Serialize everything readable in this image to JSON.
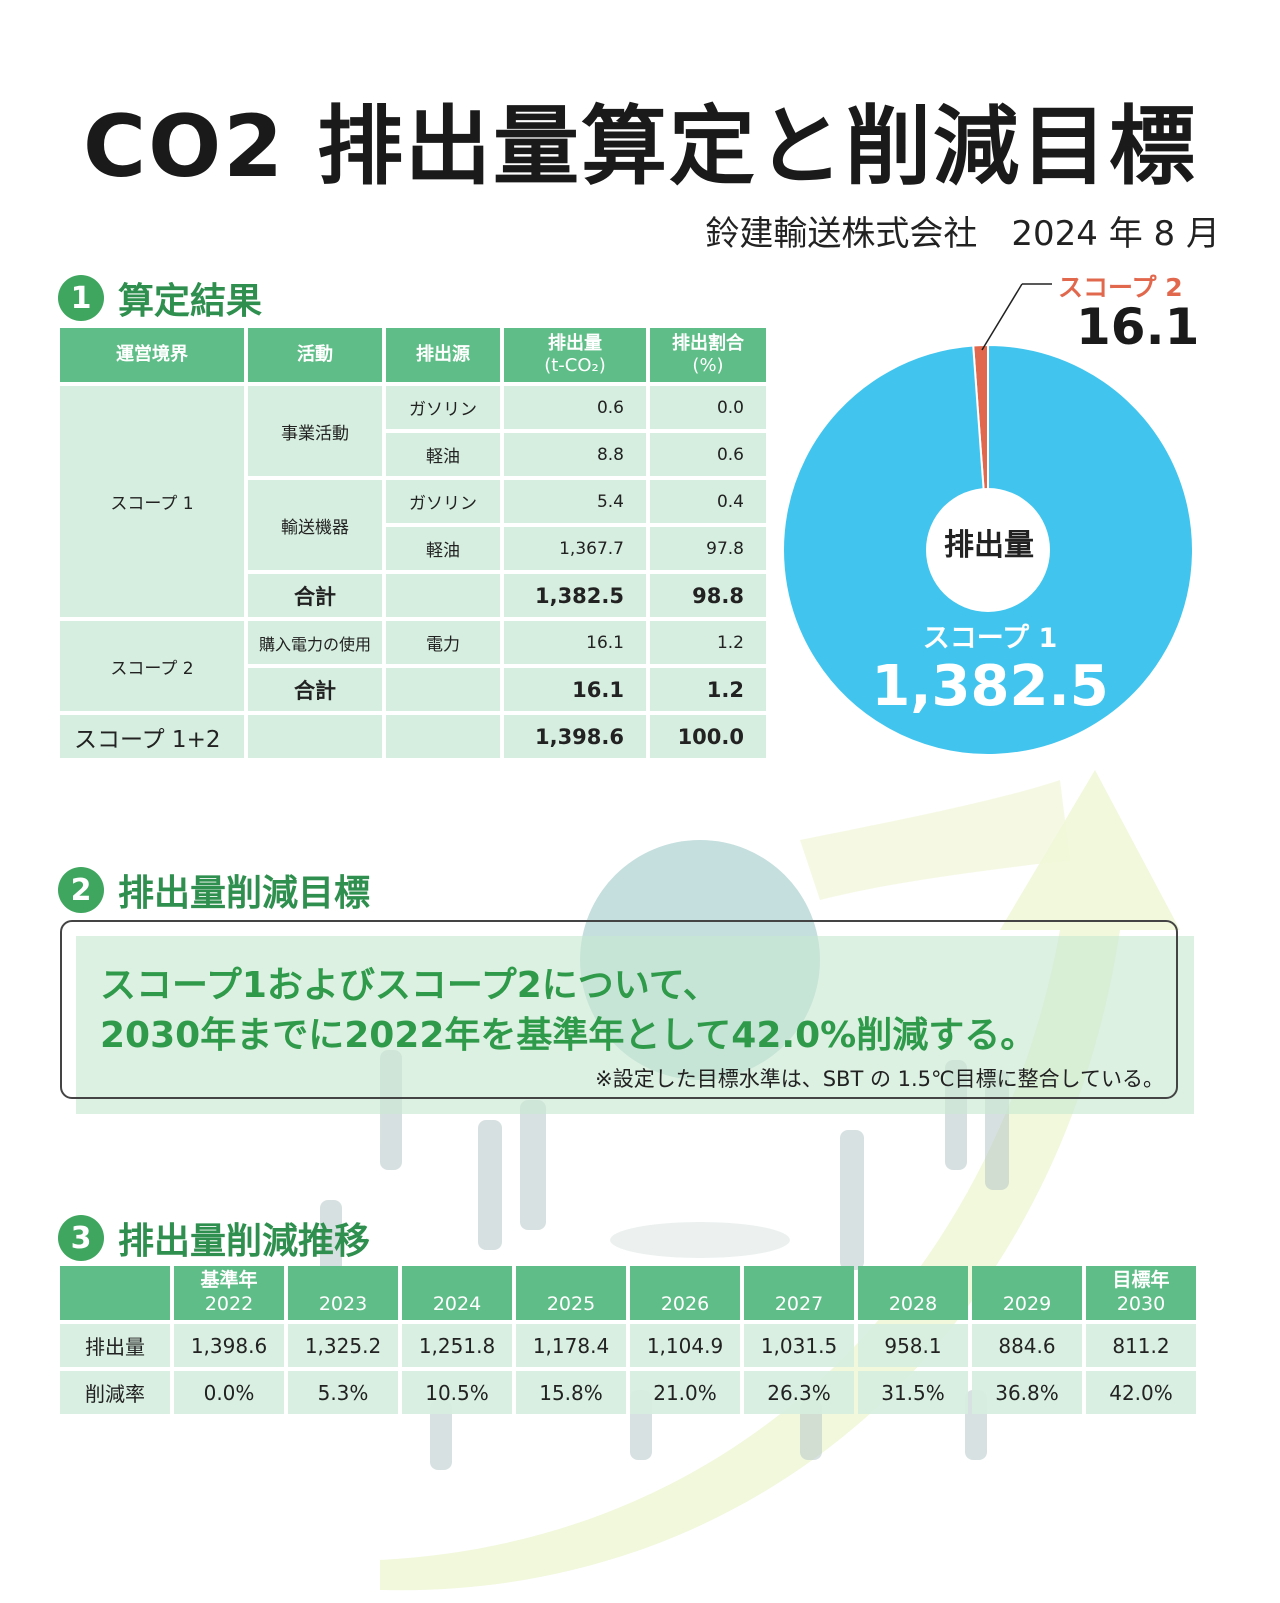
{
  "title": "CO2 排出量算定と削減目標",
  "company": "鈴建輸送株式会社　2024 年 8 月",
  "sections": {
    "s1": {
      "num": "1",
      "title": "算定結果"
    },
    "s2": {
      "num": "2",
      "title": "排出量削減目標"
    },
    "s3": {
      "num": "3",
      "title": "排出量削減推移"
    }
  },
  "result_table": {
    "headers": {
      "boundary": "運営境界",
      "activity": "活動",
      "source": "排出源",
      "emission": "排出量",
      "emission_unit": "(t-CO₂)",
      "ratio": "排出割合",
      "ratio_unit": "(%)"
    },
    "scope1": {
      "label": "スコープ 1",
      "business": "事業活動",
      "transport": "輸送機器",
      "rows": [
        {
          "source": "ガソリン",
          "emission": "0.6",
          "ratio": "0.0"
        },
        {
          "source": "軽油",
          "emission": "8.8",
          "ratio": "0.6"
        },
        {
          "source": "ガソリン",
          "emission": "5.4",
          "ratio": "0.4"
        },
        {
          "source": "軽油",
          "emission": "1,367.7",
          "ratio": "97.8"
        }
      ],
      "total_label": "合計",
      "total_emission": "1,382.5",
      "total_ratio": "98.8"
    },
    "scope2": {
      "label": "スコープ 2",
      "activity": "購入電力の使用",
      "source": "電力",
      "emission": "16.1",
      "ratio": "1.2",
      "total_label": "合計",
      "total_emission": "16.1",
      "total_ratio": "1.2"
    },
    "grand": {
      "label": "スコープ 1+2",
      "emission": "1,398.6",
      "ratio": "100.0"
    }
  },
  "pie": {
    "center": "排出量",
    "scope1_label": "スコープ 1",
    "scope1_value": "1,382.5",
    "scope2_label": "スコープ 2",
    "scope2_value": "16.1",
    "colors": {
      "scope1": "#41c5ee",
      "scope2": "#e2684d"
    }
  },
  "target": {
    "line1": "スコープ1およびスコープ2について、",
    "line2": "2030年までに2022年を基準年として42.0%削減する。",
    "note": "※設定した目標水準は、SBT の 1.5℃目標に整合している。"
  },
  "trend_table": {
    "header_prefix": {
      "base": "基準年",
      "goal": "目標年"
    },
    "years": [
      "2022",
      "2023",
      "2024",
      "2025",
      "2026",
      "2027",
      "2028",
      "2029",
      "2030"
    ],
    "row_labels": {
      "emission": "排出量",
      "rate": "削減率"
    },
    "emission": [
      "1,398.6",
      "1,325.2",
      "1,251.8",
      "1,178.4",
      "1,104.9",
      "1,031.5",
      "958.1",
      "884.6",
      "811.2"
    ],
    "rate": [
      "0.0%",
      "5.3%",
      "10.5%",
      "15.8%",
      "21.0%",
      "26.3%",
      "31.5%",
      "36.8%",
      "42.0%"
    ]
  },
  "chart_data": [
    {
      "type": "pie",
      "title": "",
      "center_label": "排出量",
      "labels": [
        "スコープ 1",
        "スコープ 2"
      ],
      "values": [
        1382.5,
        16.1
      ]
    },
    {
      "type": "table",
      "title": "排出量削減推移",
      "columns": [
        "2022",
        "2023",
        "2024",
        "2025",
        "2026",
        "2027",
        "2028",
        "2029",
        "2030"
      ],
      "rows": [
        {
          "name": "排出量",
          "values": [
            1398.6,
            1325.2,
            1251.8,
            1178.4,
            1104.9,
            1031.5,
            958.1,
            884.6,
            811.2
          ]
        },
        {
          "name": "削減率",
          "values": [
            0.0,
            5.3,
            10.5,
            15.8,
            21.0,
            26.3,
            31.5,
            36.8,
            42.0
          ]
        }
      ]
    }
  ]
}
